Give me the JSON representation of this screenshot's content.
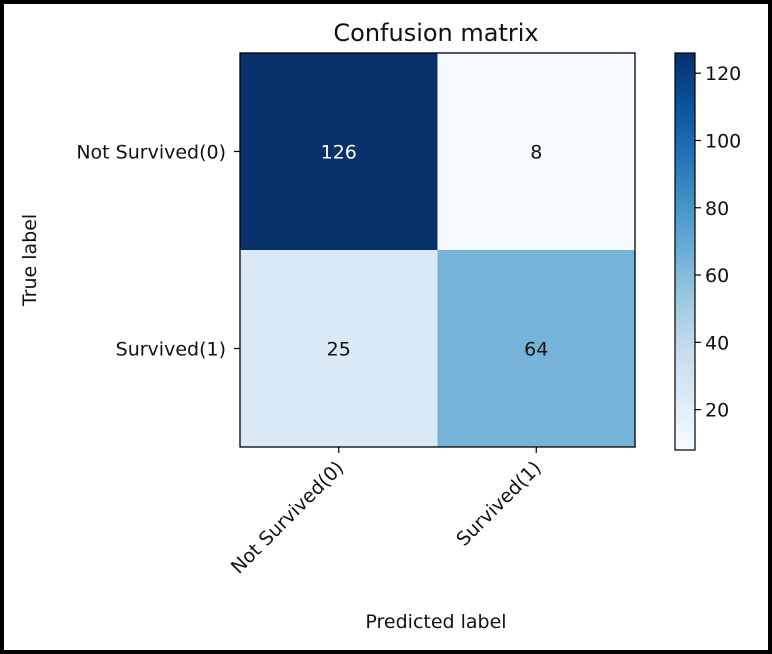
{
  "chart_data": {
    "type": "heatmap",
    "title": "Confusion matrix",
    "xlabel": "Predicted label",
    "ylabel": "True label",
    "x_categories": [
      "Not Survived(0)",
      "Survived(1)"
    ],
    "y_categories": [
      "Not Survived(0)",
      "Survived(1)"
    ],
    "values": [
      [
        126,
        8
      ],
      [
        25,
        64
      ]
    ],
    "colormap": "Blues",
    "colorbar": {
      "ticks": [
        "20",
        "40",
        "60",
        "80",
        "100",
        "120"
      ],
      "range": [
        8,
        126
      ]
    },
    "grid": false
  }
}
